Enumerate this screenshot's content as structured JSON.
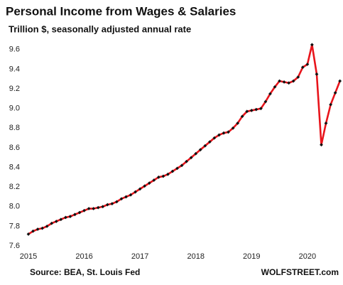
{
  "chart_data": {
    "type": "line",
    "title": "Personal Income from Wages & Salaries",
    "subtitle": "Trillion $, seasonally adjusted annual rate",
    "source": "Source: BEA, St. Louis Fed",
    "watermark": "WOLFSTREET.com",
    "x": [
      2015,
      2015.083,
      2015.167,
      2015.25,
      2015.333,
      2015.417,
      2015.5,
      2015.583,
      2015.667,
      2015.75,
      2015.833,
      2015.917,
      2016,
      2016.083,
      2016.167,
      2016.25,
      2016.333,
      2016.417,
      2016.5,
      2016.583,
      2016.667,
      2016.75,
      2016.833,
      2016.917,
      2017,
      2017.083,
      2017.167,
      2017.25,
      2017.333,
      2017.417,
      2017.5,
      2017.583,
      2017.667,
      2017.75,
      2017.833,
      2017.917,
      2018,
      2018.083,
      2018.167,
      2018.25,
      2018.333,
      2018.417,
      2018.5,
      2018.583,
      2018.667,
      2018.75,
      2018.833,
      2018.917,
      2019,
      2019.083,
      2019.167,
      2019.25,
      2019.333,
      2019.417,
      2019.5,
      2019.583,
      2019.667,
      2019.75,
      2019.833,
      2019.917,
      2020,
      2020.083,
      2020.167,
      2020.25,
      2020.333,
      2020.417,
      2020.5,
      2020.583
    ],
    "series": [
      {
        "name": "Wages & Salaries",
        "color": "#e8141b",
        "marker_color": "#111111",
        "values": [
          7.72,
          7.75,
          7.77,
          7.78,
          7.8,
          7.83,
          7.85,
          7.87,
          7.89,
          7.9,
          7.92,
          7.94,
          7.96,
          7.98,
          7.98,
          7.99,
          8.0,
          8.02,
          8.03,
          8.05,
          8.08,
          8.1,
          8.12,
          8.15,
          8.18,
          8.21,
          8.24,
          8.27,
          8.3,
          8.31,
          8.33,
          8.36,
          8.39,
          8.42,
          8.46,
          8.5,
          8.54,
          8.58,
          8.62,
          8.66,
          8.7,
          8.73,
          8.75,
          8.76,
          8.8,
          8.85,
          8.92,
          8.97,
          8.98,
          8.99,
          9.0,
          9.07,
          9.15,
          9.22,
          9.28,
          9.27,
          9.26,
          9.28,
          9.32,
          9.42,
          9.45,
          9.65,
          9.35,
          8.63,
          8.85,
          9.04,
          9.16,
          9.28
        ]
      }
    ],
    "xlim": [
      2015,
      2020.6
    ],
    "xticks": [
      2015,
      2016,
      2017,
      2018,
      2019,
      2020
    ],
    "ylim": [
      7.6,
      9.7
    ],
    "yticks": [
      7.6,
      7.8,
      {
        "value": 8,
        "label": "8.0"
      },
      8.2,
      8.4,
      8.6,
      8.8,
      {
        "value": 9,
        "label": "9.0"
      },
      9.2,
      9.4,
      9.6
    ],
    "grid": false
  }
}
